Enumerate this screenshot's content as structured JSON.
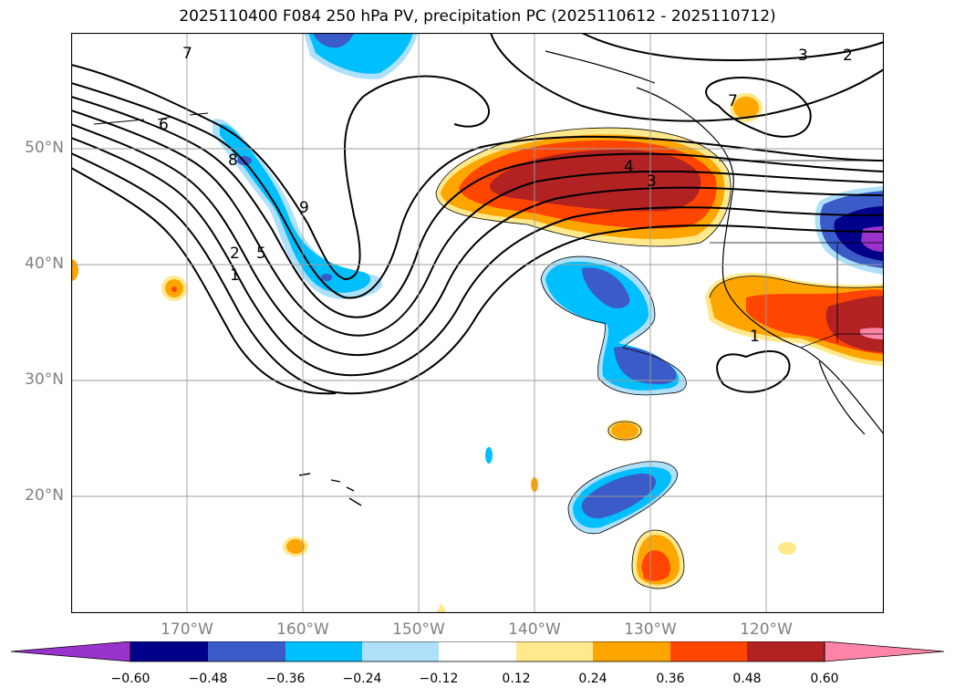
{
  "title": "2025110400 F084 250 hPa PV, precipitation PC (2025110612 - 2025110712)",
  "lat_labels": [
    "50°N",
    "40°N",
    "30°N",
    "20°N"
  ],
  "lon_labels": [
    "170°W",
    "160°W",
    "150°W",
    "140°W",
    "130°W",
    "120°W"
  ],
  "contour_labels": [
    "7",
    "6",
    "8",
    "9",
    "2",
    "5",
    "1",
    "4",
    "3",
    "7",
    "3",
    "2",
    "1"
  ],
  "colorbar": {
    "ticks": [
      "−0.60",
      "−0.48",
      "−0.36",
      "−0.24",
      "−0.12",
      "0.12",
      "0.24",
      "0.36",
      "0.48",
      "0.60"
    ],
    "colors": [
      "#9933cc",
      "#00008b",
      "#3a5bc8",
      "#00bfff",
      "#aee0fa",
      "#ffffff",
      "#ffe98c",
      "#ffa500",
      "#ff4500",
      "#b22222",
      "#ff85a8"
    ]
  },
  "colors": {
    "neg_extreme": "#9933cc",
    "neg_strong": "#00008b",
    "neg_mid": "#3a5bc8",
    "neg_mild": "#00bfff",
    "neg_weak": "#aee0fa",
    "pos_weak": "#ffe98c",
    "pos_mild": "#ffa500",
    "pos_mid": "#ff4500",
    "pos_strong": "#b22222",
    "pos_extreme": "#ff85a8"
  }
}
